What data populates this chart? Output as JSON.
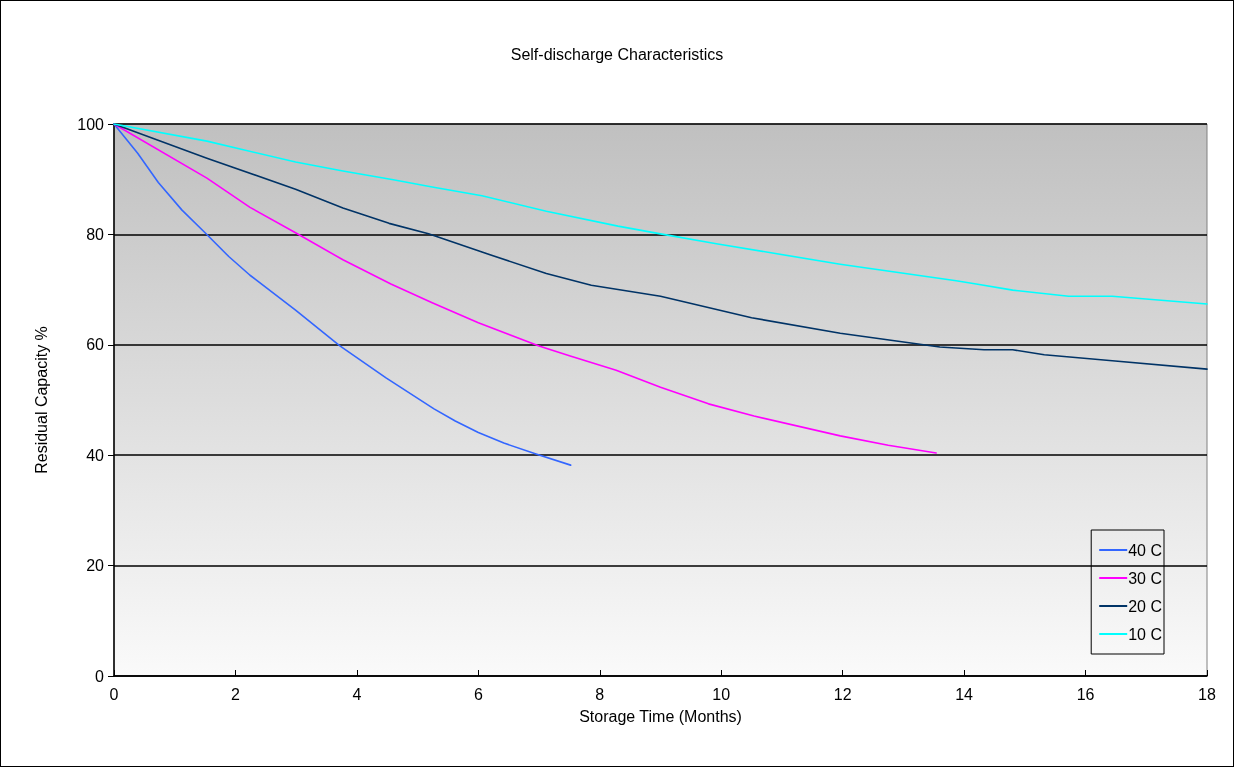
{
  "chart_data": {
    "type": "line",
    "title": "Self-discharge Characteristics",
    "xlabel": "Storage Time (Months)",
    "ylabel": "Residual Capacity %",
    "xlim": [
      0,
      18
    ],
    "xticks": [
      0,
      2,
      4,
      6,
      8,
      10,
      12,
      14,
      16,
      18
    ],
    "ylim": [
      0,
      100
    ],
    "yticks": [
      0,
      20,
      40,
      60,
      80,
      100
    ],
    "grid": "y",
    "legend": "bottom right",
    "marker": "none",
    "line_style": "solid",
    "series": [
      {
        "name": "40 C",
        "color": "#3366ff",
        "x": [
          0,
          0.39,
          0.73,
          1.12,
          1.5,
          1.89,
          2.24,
          2.99,
          3.72,
          4.48,
          5.27,
          5.62,
          6.0,
          6.42,
          6.95,
          7.52
        ],
        "values": [
          100,
          94.7,
          89.4,
          84.4,
          80.3,
          76,
          72.6,
          66.3,
          59.8,
          54,
          48.4,
          46.2,
          44.1,
          42.2,
          40.2,
          38.2
        ]
      },
      {
        "name": "30 C",
        "color": "#ff00ff",
        "x": [
          0,
          1.53,
          2.24,
          2.99,
          3.77,
          4.56,
          5.24,
          6.0,
          7.0,
          7.5,
          8.27,
          9.0,
          9.79,
          10.54,
          11.96,
          12.75,
          13.54
        ],
        "values": [
          100,
          90.2,
          84.9,
          80.3,
          75.4,
          71,
          67.6,
          64,
          59.8,
          58,
          55.4,
          52.3,
          49.3,
          47.1,
          43.5,
          41.8,
          40.4
        ]
      },
      {
        "name": "20 C",
        "color": "#003366",
        "x": [
          0,
          1.53,
          2.99,
          3.77,
          4.53,
          5.18,
          6.06,
          7.12,
          7.86,
          9.0,
          10.5,
          11.96,
          13.6,
          14.33,
          14.8,
          15.32,
          16.44,
          18
        ],
        "values": [
          100,
          93.8,
          88.2,
          84.8,
          82,
          80.1,
          76.8,
          72.9,
          70.8,
          68.8,
          64.9,
          62.1,
          59.6,
          59.1,
          59.1,
          58.2,
          57.1,
          55.6
        ]
      },
      {
        "name": "10 C",
        "color": "#00ffff",
        "x": [
          0,
          1.53,
          2.99,
          3.77,
          4.6,
          5.24,
          6.06,
          7.12,
          8.3,
          9.0,
          9.92,
          11.96,
          13.87,
          14.2,
          14.8,
          15.72,
          16.44,
          18
        ],
        "values": [
          100,
          96.9,
          93.1,
          91.5,
          89.9,
          88.6,
          87,
          84.2,
          81.5,
          80.1,
          78.3,
          74.6,
          71.6,
          71,
          69.9,
          68.8,
          68.8,
          67.4
        ]
      }
    ]
  }
}
